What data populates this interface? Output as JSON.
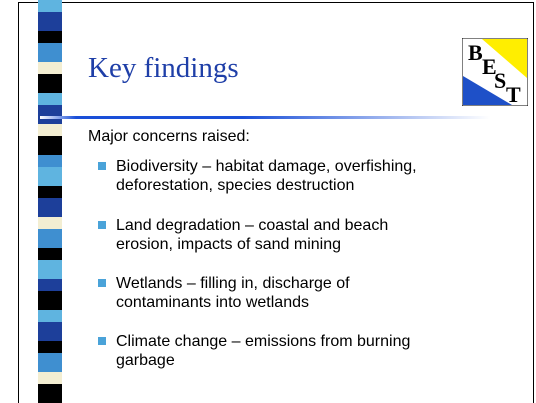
{
  "title": "Key findings",
  "logo": [
    "B",
    "E",
    "S",
    "T"
  ],
  "intro": "Major concerns raised:",
  "items": [
    {
      "lines": [
        "Biodiversity – habitat damage, overfishing,",
        "deforestation, species destruction"
      ]
    },
    {
      "lines": [
        "Land degradation – coastal and beach",
        "erosion, impacts of sand mining"
      ]
    },
    {
      "lines": [
        "Wetlands – filling in, discharge of",
        "contaminants into wetlands"
      ]
    },
    {
      "lines": [
        "Climate change – emissions from burning",
        "garbage"
      ]
    }
  ]
}
